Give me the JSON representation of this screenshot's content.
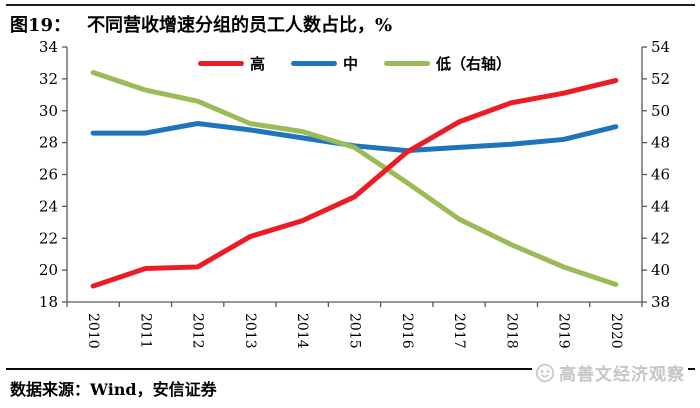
{
  "figure": {
    "label": "图19：",
    "title": "不同营收增速分组的员工人数占比，%"
  },
  "chart_data": {
    "type": "line",
    "title": "不同营收增速分组的员工人数占比，%",
    "xlabel": "",
    "ylabel": "",
    "x": [
      "2010",
      "2011",
      "2012",
      "2013",
      "2014",
      "2015",
      "2016",
      "2017",
      "2018",
      "2019",
      "2020"
    ],
    "series": [
      {
        "name": "高",
        "axis": "left",
        "color": "#EC1C24",
        "values": [
          19.0,
          20.1,
          20.2,
          22.1,
          23.1,
          24.6,
          27.4,
          29.3,
          30.5,
          31.1,
          31.9
        ]
      },
      {
        "name": "中",
        "axis": "left",
        "color": "#1E75BB",
        "values": [
          28.6,
          28.6,
          29.2,
          28.8,
          28.3,
          27.8,
          27.5,
          27.7,
          27.9,
          28.2,
          29.0
        ]
      },
      {
        "name": "低（右轴）",
        "axis": "right",
        "color": "#9BBB59",
        "values": [
          52.4,
          51.3,
          50.6,
          49.2,
          48.7,
          47.7,
          45.5,
          43.2,
          41.6,
          40.2,
          39.1
        ]
      }
    ],
    "draw_order": [
      1,
      2,
      0
    ],
    "left_axis": {
      "min": 18,
      "max": 34,
      "step": 2,
      "ticks": [
        34,
        32,
        30,
        28,
        26,
        24,
        22,
        20,
        18
      ]
    },
    "right_axis": {
      "min": 38,
      "max": 54,
      "step": 2,
      "ticks": [
        54,
        52,
        50,
        48,
        46,
        44,
        42,
        40,
        38
      ]
    },
    "legend_position": "top-center",
    "grid": false,
    "x_label_rotation_deg": 90
  },
  "footer": {
    "source_text": "数据来源：Wind，安信证券",
    "watermark": {
      "icon": "face-logo-icon",
      "text": "高善文经济观察"
    }
  },
  "colors": {
    "high_line": "#EC1C24",
    "mid_line": "#1E75BB",
    "low_line": "#9BBB59",
    "axis": "#595959",
    "rule": "#1b1b1b",
    "watermark_gray": "#c6c6c6"
  }
}
